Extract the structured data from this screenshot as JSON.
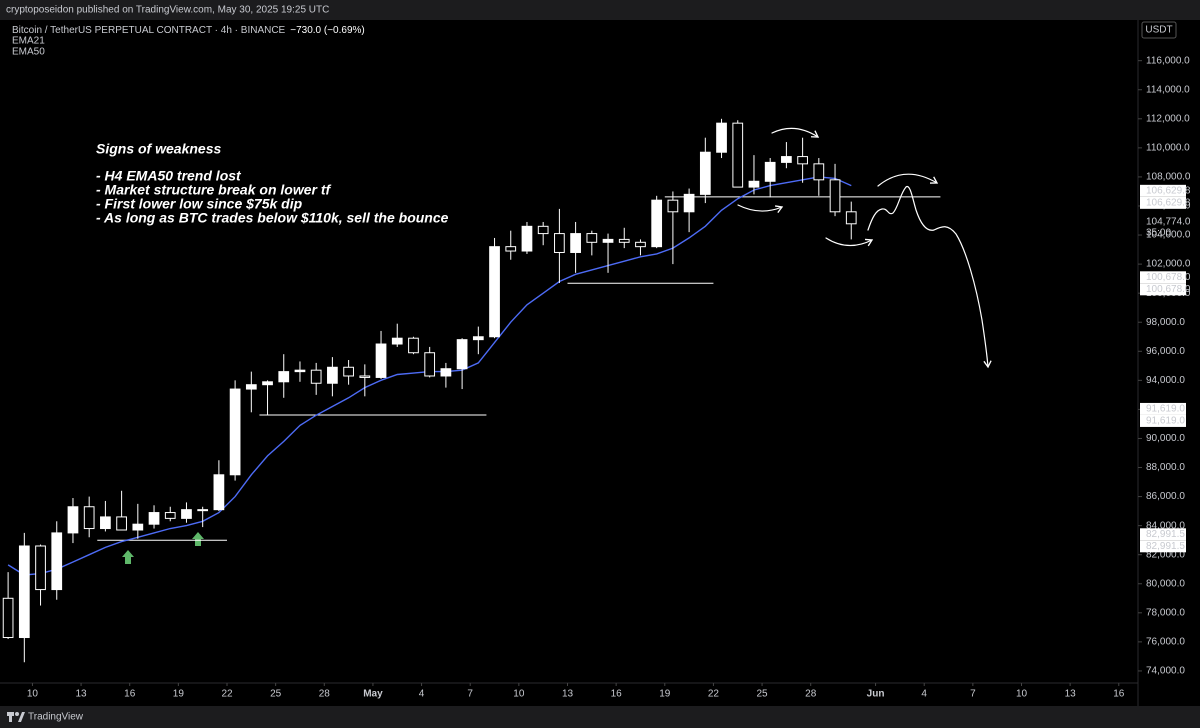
{
  "header": {
    "publisher": "cryptoposeidon published on TradingView.com, May 30, 2025 19:25 UTC",
    "footer": "TradingView"
  },
  "chart_data": {
    "type": "candlestick",
    "title": "Bitcoin / TetherUS PERPETUAL CONTRACT · 4h · BINANCE",
    "change": "−730.0 (−0.69%)",
    "currency": "USDT",
    "annotations": [
      "Signs of weakness",
      "- H4 EMA50 trend lost",
      "- Market structure break on lower tf",
      "- First lower low since $75k dip",
      "- As long as BTC trades below $110k, sell the bounce"
    ],
    "x": [
      "2025-04-08",
      "2025-04-09",
      "2025-04-10",
      "2025-04-11",
      "2025-04-12",
      "2025-04-13",
      "2025-04-14",
      "2025-04-15",
      "2025-04-16",
      "2025-04-17",
      "2025-04-18",
      "2025-04-19",
      "2025-04-20",
      "2025-04-21",
      "2025-04-22",
      "2025-04-23",
      "2025-04-24",
      "2025-04-25",
      "2025-04-26",
      "2025-04-27",
      "2025-04-28",
      "2025-04-29",
      "2025-04-30",
      "2025-05-01",
      "2025-05-02",
      "2025-05-03",
      "2025-05-04",
      "2025-05-05",
      "2025-05-06",
      "2025-05-07",
      "2025-05-08",
      "2025-05-09",
      "2025-05-10",
      "2025-05-11",
      "2025-05-12",
      "2025-05-13",
      "2025-05-14",
      "2025-05-15",
      "2025-05-16",
      "2025-05-17",
      "2025-05-18",
      "2025-05-19",
      "2025-05-20",
      "2025-05-21",
      "2025-05-22",
      "2025-05-23",
      "2025-05-24",
      "2025-05-25",
      "2025-05-26",
      "2025-05-27",
      "2025-05-28",
      "2025-05-29",
      "2025-05-30"
    ],
    "open": [
      79000,
      76300,
      82600,
      79600,
      83500,
      85300,
      83800,
      84600,
      83700,
      84100,
      84900,
      84500,
      85100,
      85100,
      87500,
      93400,
      93700,
      93900,
      94600,
      94700,
      93800,
      94900,
      94300,
      94200,
      96500,
      96900,
      95900,
      94300,
      94800,
      96800,
      97000,
      103200,
      102900,
      104600,
      104100,
      102800,
      104100,
      103500,
      103700,
      103500,
      103200,
      106400,
      105600,
      106800,
      109700,
      111700,
      107300,
      107700,
      109000,
      109400,
      108900,
      107800,
      105600
    ],
    "high": [
      80800,
      83500,
      82700,
      84300,
      85900,
      86000,
      85700,
      86400,
      85500,
      85400,
      85300,
      85600,
      85300,
      88500,
      94000,
      94600,
      94000,
      95800,
      95300,
      95200,
      95600,
      95400,
      95100,
      97400,
      97900,
      97000,
      96300,
      95200,
      96900,
      97700,
      103800,
      104300,
      104900,
      104900,
      105800,
      104900,
      104300,
      104100,
      104500,
      103700,
      106700,
      107000,
      107200,
      110700,
      112000,
      111900,
      109500,
      109300,
      110400,
      110700,
      109300,
      108900,
      106300
    ],
    "low": [
      76200,
      74600,
      78500,
      78900,
      82800,
      83200,
      83600,
      83700,
      83100,
      83800,
      84300,
      84200,
      83900,
      85000,
      87100,
      91800,
      91600,
      92800,
      93900,
      93000,
      92900,
      93700,
      92900,
      94100,
      96300,
      95800,
      94200,
      93500,
      93400,
      95800,
      96900,
      102300,
      102700,
      103300,
      100700,
      101400,
      102600,
      101400,
      103100,
      102600,
      103100,
      102000,
      104200,
      106200,
      109300,
      107300,
      106800,
      106600,
      108600,
      107600,
      106700,
      105300,
      103700
    ],
    "close": [
      76300,
      82600,
      79600,
      83500,
      85300,
      83800,
      84600,
      83700,
      84100,
      84900,
      84500,
      85100,
      85100,
      87500,
      93400,
      93700,
      93900,
      94600,
      94700,
      93800,
      94900,
      94300,
      94200,
      96500,
      96900,
      95900,
      94300,
      94800,
      96800,
      97000,
      103200,
      102900,
      104600,
      104100,
      102800,
      104100,
      103500,
      103700,
      103500,
      103200,
      106400,
      105600,
      106800,
      109700,
      111700,
      107300,
      107700,
      109000,
      109400,
      108900,
      107800,
      105600,
      104774
    ],
    "series": [
      {
        "name": "EMA21"
      },
      {
        "name": "EMA50",
        "color": "#4d6bf5",
        "values": [
          81300,
          80600,
          80700,
          81000,
          81500,
          82000,
          82500,
          82900,
          83200,
          83500,
          83800,
          84000,
          84300,
          84900,
          86000,
          87500,
          88800,
          89800,
          90900,
          91600,
          92200,
          92800,
          93500,
          94000,
          94400,
          94500,
          94600,
          94600,
          94700,
          95200,
          96600,
          98000,
          99200,
          100000,
          100800,
          101300,
          101600,
          101900,
          102200,
          102500,
          102700,
          103100,
          103800,
          104600,
          105700,
          106500,
          107100,
          107400,
          107600,
          107800,
          108000,
          107900,
          107400
        ]
      }
    ],
    "levels": [
      {
        "value": 106629.8,
        "label": "106,629.8",
        "start": "2025-05-19",
        "end": "2025-06-05"
      },
      {
        "value": 100678.0,
        "label": "100,678.0",
        "start": "2025-05-13",
        "end": "2025-05-22"
      },
      {
        "value": 91619.0,
        "label": "91,619.0",
        "start": "2025-04-24",
        "end": "2025-05-08"
      },
      {
        "value": 82991.5,
        "label": "82,991.5",
        "start": "2025-04-14",
        "end": "2025-04-22"
      }
    ],
    "last": {
      "value": 104774.0,
      "label": "104,774.0",
      "countdown": "35:00"
    },
    "xlim": [
      "2025-04-08",
      "2025-06-17"
    ],
    "xticks": [
      {
        "value": "2025-04-10",
        "label": "10"
      },
      {
        "value": "2025-04-13",
        "label": "13"
      },
      {
        "value": "2025-04-16",
        "label": "16"
      },
      {
        "value": "2025-04-19",
        "label": "19"
      },
      {
        "value": "2025-04-22",
        "label": "22"
      },
      {
        "value": "2025-04-25",
        "label": "25"
      },
      {
        "value": "2025-04-28",
        "label": "28"
      },
      {
        "value": "2025-05-01",
        "label": "May"
      },
      {
        "value": "2025-05-04",
        "label": "4"
      },
      {
        "value": "2025-05-07",
        "label": "7"
      },
      {
        "value": "2025-05-10",
        "label": "10"
      },
      {
        "value": "2025-05-13",
        "label": "13"
      },
      {
        "value": "2025-05-16",
        "label": "16"
      },
      {
        "value": "2025-05-19",
        "label": "19"
      },
      {
        "value": "2025-05-22",
        "label": "22"
      },
      {
        "value": "2025-05-25",
        "label": "25"
      },
      {
        "value": "2025-05-28",
        "label": "28"
      },
      {
        "value": "2025-06-01",
        "label": "Jun"
      },
      {
        "value": "2025-06-04",
        "label": "4"
      },
      {
        "value": "2025-06-07",
        "label": "7"
      },
      {
        "value": "2025-06-10",
        "label": "10"
      },
      {
        "value": "2025-06-13",
        "label": "13"
      },
      {
        "value": "2025-06-16",
        "label": "16"
      }
    ],
    "ylim": [
      72000,
      118800
    ],
    "yticks": [
      {
        "value": 74000,
        "label": "74,000.0"
      },
      {
        "value": 76000,
        "label": "76,000.0"
      },
      {
        "value": 78000,
        "label": "78,000.0"
      },
      {
        "value": 80000,
        "label": "80,000.0"
      },
      {
        "value": 82000,
        "label": "82,000.0"
      },
      {
        "value": 84000,
        "label": "84,000.0"
      },
      {
        "value": 86000,
        "label": "86,000.0"
      },
      {
        "value": 88000,
        "label": "88,000.0"
      },
      {
        "value": 90000,
        "label": "90,000.0"
      },
      {
        "value": 92000,
        "label": "92,000.0"
      },
      {
        "value": 94000,
        "label": "94,000.0"
      },
      {
        "value": 96000,
        "label": "96,000.0"
      },
      {
        "value": 98000,
        "label": "98,000.0"
      },
      {
        "value": 100000,
        "label": "100,000.0"
      },
      {
        "value": 102000,
        "label": "102,000.0"
      },
      {
        "value": 104000,
        "label": "104,000.0"
      },
      {
        "value": 106000,
        "label": "106,000.0"
      },
      {
        "value": 108000,
        "label": "108,000.0"
      },
      {
        "value": 110000,
        "label": "110,000.0"
      },
      {
        "value": 112000,
        "label": "112,000.0"
      },
      {
        "value": 114000,
        "label": "114,000.0"
      },
      {
        "value": 116000,
        "label": "116,000.0"
      }
    ],
    "up_color": "#ffffff",
    "down_color": "#000000",
    "grid": false
  }
}
